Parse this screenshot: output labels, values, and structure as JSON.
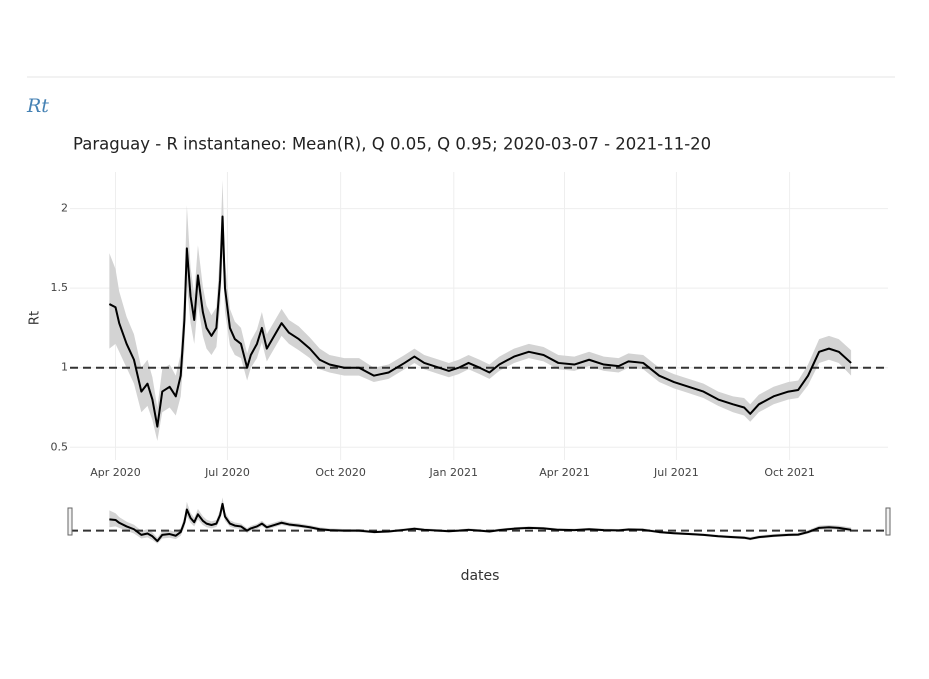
{
  "heading": "Rt",
  "chart_data": {
    "type": "line",
    "title": "Paraguay - R instantaneo: Mean(R), Q 0.05, Q 0.95;  2020-03-07 - 2021-11-20",
    "x_label": "dates",
    "y_label": "Rt",
    "xlim": [
      "2020-02-24",
      "2021-12-20"
    ],
    "xticks": [
      {
        "value": "2020-04-01",
        "label": "Apr 2020"
      },
      {
        "value": "2020-07-01",
        "label": "Jul 2020"
      },
      {
        "value": "2020-10-01",
        "label": "Oct 2020"
      },
      {
        "value": "2021-01-01",
        "label": "Jan 2021"
      },
      {
        "value": "2021-04-01",
        "label": "Apr 2021"
      },
      {
        "value": "2021-07-01",
        "label": "Jul 2021"
      },
      {
        "value": "2021-10-01",
        "label": "Oct 2021"
      }
    ],
    "ylim": [
      0.42,
      2.23
    ],
    "yticks": [
      0.5,
      1,
      1.5,
      2
    ],
    "grid": true,
    "reference_line": 1,
    "x": [
      "2020-03-27",
      "2020-04-01",
      "2020-04-04",
      "2020-04-10",
      "2020-04-16",
      "2020-04-22",
      "2020-04-27",
      "2020-05-01",
      "2020-05-05",
      "2020-05-09",
      "2020-05-15",
      "2020-05-20",
      "2020-05-24",
      "2020-05-27",
      "2020-05-29",
      "2020-06-01",
      "2020-06-04",
      "2020-06-07",
      "2020-06-11",
      "2020-06-14",
      "2020-06-18",
      "2020-06-22",
      "2020-06-25",
      "2020-06-27",
      "2020-06-29",
      "2020-07-03",
      "2020-07-07",
      "2020-07-12",
      "2020-07-17",
      "2020-07-20",
      "2020-07-25",
      "2020-07-29",
      "2020-08-02",
      "2020-08-08",
      "2020-08-14",
      "2020-08-20",
      "2020-08-28",
      "2020-09-06",
      "2020-09-14",
      "2020-09-22",
      "2020-10-04",
      "2020-10-16",
      "2020-10-28",
      "2020-11-09",
      "2020-11-22",
      "2020-11-30",
      "2020-12-08",
      "2020-12-20",
      "2020-12-28",
      "2021-01-05",
      "2021-01-13",
      "2021-01-22",
      "2021-01-30",
      "2021-02-07",
      "2021-02-19",
      "2021-03-03",
      "2021-03-15",
      "2021-03-27",
      "2021-04-09",
      "2021-04-21",
      "2021-05-03",
      "2021-05-15",
      "2021-05-23",
      "2021-06-04",
      "2021-06-17",
      "2021-06-29",
      "2021-07-11",
      "2021-07-23",
      "2021-08-04",
      "2021-08-16",
      "2021-08-25",
      "2021-08-30",
      "2021-09-06",
      "2021-09-18",
      "2021-09-30",
      "2021-10-08",
      "2021-10-16",
      "2021-10-25",
      "2021-11-02",
      "2021-11-10",
      "2021-11-20"
    ],
    "series": [
      {
        "color": "#000000",
        "values": [
          1.4,
          1.38,
          1.28,
          1.15,
          1.05,
          0.85,
          0.9,
          0.8,
          0.63,
          0.85,
          0.88,
          0.82,
          0.95,
          1.3,
          1.75,
          1.45,
          1.3,
          1.58,
          1.35,
          1.25,
          1.2,
          1.25,
          1.55,
          1.95,
          1.5,
          1.25,
          1.18,
          1.15,
          1.0,
          1.08,
          1.15,
          1.25,
          1.12,
          1.2,
          1.28,
          1.22,
          1.18,
          1.12,
          1.05,
          1.02,
          1.0,
          1.0,
          0.95,
          0.97,
          1.03,
          1.07,
          1.03,
          1.0,
          0.98,
          1.0,
          1.03,
          1.0,
          0.97,
          1.02,
          1.07,
          1.1,
          1.08,
          1.03,
          1.02,
          1.05,
          1.02,
          1.01,
          1.04,
          1.03,
          0.95,
          0.91,
          0.88,
          0.85,
          0.8,
          0.77,
          0.75,
          0.71,
          0.77,
          0.82,
          0.85,
          0.86,
          0.95,
          1.1,
          1.12,
          1.1,
          1.03
        ]
      }
    ],
    "band": {
      "color": "#d3d3d3",
      "lower": [
        1.12,
        1.15,
        1.1,
        1.0,
        0.9,
        0.72,
        0.76,
        0.67,
        0.54,
        0.72,
        0.75,
        0.7,
        0.82,
        1.12,
        1.52,
        1.28,
        1.15,
        1.4,
        1.2,
        1.12,
        1.08,
        1.13,
        1.38,
        1.72,
        1.35,
        1.14,
        1.08,
        1.06,
        0.92,
        1.0,
        1.06,
        1.16,
        1.04,
        1.12,
        1.2,
        1.15,
        1.11,
        1.06,
        0.99,
        0.97,
        0.95,
        0.95,
        0.91,
        0.93,
        0.99,
        1.03,
        0.99,
        0.96,
        0.94,
        0.96,
        0.99,
        0.96,
        0.93,
        0.98,
        1.03,
        1.06,
        1.04,
        0.99,
        0.98,
        1.01,
        0.98,
        0.97,
        1.0,
        0.99,
        0.91,
        0.87,
        0.84,
        0.81,
        0.76,
        0.72,
        0.7,
        0.66,
        0.72,
        0.77,
        0.8,
        0.81,
        0.89,
        1.03,
        1.05,
        1.03,
        0.95
      ],
      "upper": [
        1.72,
        1.62,
        1.48,
        1.32,
        1.21,
        1.0,
        1.05,
        0.94,
        0.75,
        0.99,
        1.02,
        0.95,
        1.09,
        1.49,
        2.02,
        1.63,
        1.46,
        1.77,
        1.51,
        1.39,
        1.33,
        1.38,
        1.73,
        2.18,
        1.66,
        1.37,
        1.29,
        1.25,
        1.09,
        1.17,
        1.24,
        1.35,
        1.21,
        1.29,
        1.37,
        1.3,
        1.26,
        1.19,
        1.12,
        1.08,
        1.06,
        1.06,
        1.0,
        1.02,
        1.08,
        1.12,
        1.08,
        1.05,
        1.03,
        1.05,
        1.08,
        1.05,
        1.02,
        1.07,
        1.12,
        1.15,
        1.13,
        1.08,
        1.07,
        1.1,
        1.07,
        1.06,
        1.09,
        1.08,
        1.0,
        0.96,
        0.93,
        0.9,
        0.85,
        0.82,
        0.81,
        0.77,
        0.83,
        0.88,
        0.91,
        0.92,
        1.02,
        1.18,
        1.2,
        1.18,
        1.11
      ]
    }
  }
}
